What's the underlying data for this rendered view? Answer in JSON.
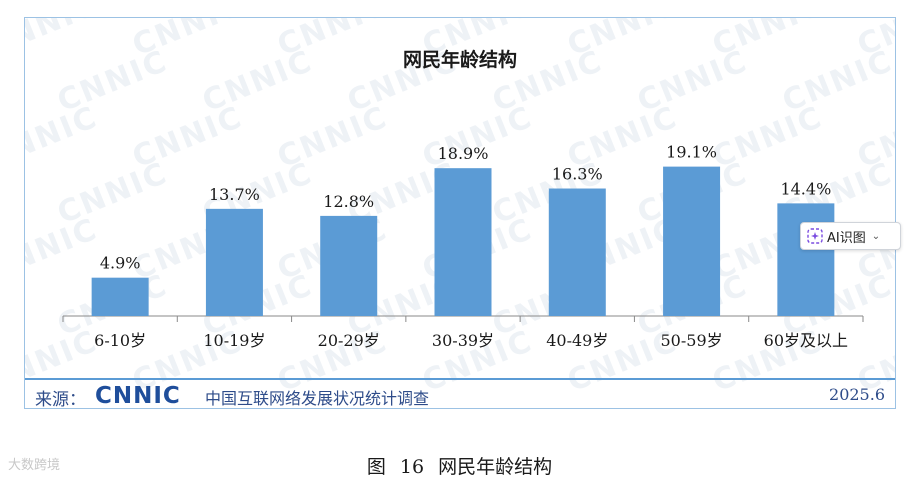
{
  "chart_data": {
    "type": "bar",
    "title": "网民年龄结构",
    "categories": [
      "6-10岁",
      "10-19岁",
      "20-29岁",
      "30-39岁",
      "40-49岁",
      "50-59岁",
      "60岁及以上"
    ],
    "values": [
      4.9,
      13.7,
      12.8,
      18.9,
      16.3,
      19.1,
      14.4
    ],
    "value_labels": [
      "4.9%",
      "13.7%",
      "12.8%",
      "18.9%",
      "16.3%",
      "19.1%",
      "14.4%"
    ],
    "ylim": [
      0,
      20
    ],
    "grid": false,
    "bar_color": "#5b9bd5"
  },
  "footer": {
    "source_label": "来源：",
    "logo_text": "CNNIC",
    "survey_name": "中国互联网络发展状况统计调查",
    "date": "2025.6"
  },
  "watermark": "CNNIC",
  "ai_button": {
    "label": "AI识图"
  },
  "caption": {
    "prefix": "图",
    "number": "16",
    "text": "网民年龄结构"
  },
  "brand_mark": "大数跨境",
  "colors": {
    "bar": "#5b9bd5",
    "border": "#9cc2e4",
    "footer_text": "#2e4c8a",
    "logo": "#1f4e9b"
  }
}
